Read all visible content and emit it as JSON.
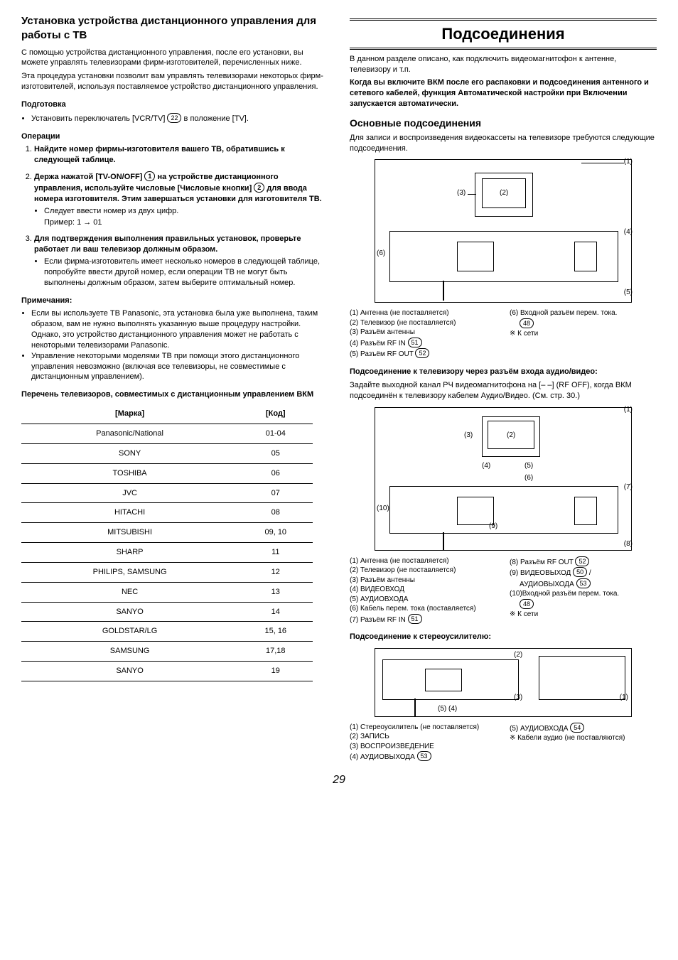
{
  "left": {
    "title": "Установка устройства дистанционного управления для работы с ТВ",
    "intro1": "С помощью устройства дистанционного управления, после его установки, вы можете управлять телевизорами фирм-изготовителей, перечисленных ниже.",
    "intro2": "Эта процедура установки позволит вам управлять телевизорами некоторых фирм-изготовителей, используя поставляемое устройство дистанционного управления.",
    "prep_h": "Подготовка",
    "prep_bullet": "Установить переключатель [VCR/TV]",
    "prep_ref": "22",
    "prep_end": " в положение [TV].",
    "ops_h": "Операции",
    "step1": "Найдите номер фирмы-изготовителя вашего ТВ, обратившись к следующей таблице.",
    "step2a": "Держа нажатой [TV-ON/OFF]",
    "step2ref1": "1",
    "step2b": " на устройстве дистанционного управления, используйте числовые [Числовые кнопки]",
    "step2ref2": "2",
    "step2c": " для ввода номера изготовителя. Этим завершаться установки для изготовителя ТВ.",
    "step2sub1": "Следует ввести номер из двух цифр.",
    "step2sub2": "Пример: 1 → 01",
    "step3": "Для подтверждения выполнения правильных установок, проверьте работает ли ваш телевизор должным образом.",
    "step3sub": "Если фирма-изготовитель имеет несколько номеров в следующей таблице, попробуйте ввести другой номер, если операции ТВ не могут быть выполнены должным образом, затем выберите оптимальный номер.",
    "notes_h": "Примечания:",
    "note1": "Если вы используете ТВ Panasonic, эта установка была уже выполнена, таким образом, вам не нужно выполнять указанную выше процедуру настройки. Однако, это устройство дистанционного управления может не работать с некоторыми телевизорами Panasonic.",
    "note2": "Управление некоторыми моделями ТВ при помощи этого дистанционного управления невозможно (включая все телевизоры, не совместимые с дистанционным управлением).",
    "table_h": "Перечень телевизоров, совместимых с дистанционным управлением ВКМ",
    "th_brand": "[Марка]",
    "th_code": "[Код]",
    "rows": [
      {
        "b": "Panasonic/National",
        "c": "01-04"
      },
      {
        "b": "SONY",
        "c": "05"
      },
      {
        "b": "TOSHIBA",
        "c": "06"
      },
      {
        "b": "JVC",
        "c": "07"
      },
      {
        "b": "HITACHI",
        "c": "08"
      },
      {
        "b": "MITSUBISHI",
        "c": "09, 10"
      },
      {
        "b": "SHARP",
        "c": "11"
      },
      {
        "b": "PHILIPS, SAMSUNG",
        "c": "12"
      },
      {
        "b": "NEC",
        "c": "13"
      },
      {
        "b": "SANYO",
        "c": "14"
      },
      {
        "b": "GOLDSTAR/LG",
        "c": "15, 16"
      },
      {
        "b": "SAMSUNG",
        "c": "17,18"
      },
      {
        "b": "SANYO",
        "c": "19"
      }
    ]
  },
  "right": {
    "title": "Подсоединения",
    "intro": "В данном разделе описано, как подключить видеомагнитофон к антенне, телевизору и т.п.",
    "bold_para": "Когда вы включите ВКМ после его распаковки и подсоединения антенного и сетевого кабелей, функция Автоматической настройки при Включении запускается автоматически.",
    "sec1_h": "Основные подсоединения",
    "sec1_p": "Для записи и воспроизведения видеокассеты на телевизоре требуются следующие подсоединения.",
    "d1_c1": "(1)",
    "d1_c2": "(2)",
    "d1_c3": "(3)",
    "d1_c4": "(4)",
    "d1_c5": "(5)",
    "d1_c6": "(6)",
    "leg1_l1": "(1) Антенна (не поставляется)",
    "leg1_l2": "(2) Телевизор (не поставляется)",
    "leg1_l3": "(3) Разъём антенны",
    "leg1_l4": "(4) Разъём RF IN",
    "leg1_l4r": "51",
    "leg1_l5": "(5) Разъём RF OUT",
    "leg1_l5r": "52",
    "leg1_r1": "(6) Входной разъём перем. тока.",
    "leg1_r1r": "48",
    "leg1_r2": "※ К сети",
    "sec2_h": "Подсоединение к телевизору через разъём входа аудио/видео:",
    "sec2_p": "Задайте выходной канал РЧ видеомагнитофона на [– –] (RF OFF), когда ВКМ подсоединён к телевизору кабелем Аудио/Видео. (См. стр. 30.)",
    "leg2_l1": "(1) Антенна (не поставляется)",
    "leg2_l2": "(2) Телевизор (не поставляется)",
    "leg2_l3": "(3) Разъём антенны",
    "leg2_l4": "(4) ВИДЕОВХОД",
    "leg2_l5": "(5) АУДИОВХОДА",
    "leg2_l6": "(6) Кабель перем. тока (поставляется)",
    "leg2_l7": "(7) Разъём RF IN",
    "leg2_l7r": "51",
    "leg2_r1": "(8) Разъём RF OUT",
    "leg2_r1r": "52",
    "leg2_r2": "(9) ВИДЕОВЫХОД",
    "leg2_r2r": "50",
    "leg2_r2b": "АУДИОВЫХОДА",
    "leg2_r2br": "53",
    "leg2_r3": "(10)Входной разъём перем. тока.",
    "leg2_r3r": "48",
    "leg2_r4": "※ К сети",
    "sec3_h": "Подсоединение к стереоусилителю:",
    "leg3_l1": "(1) Стереоусилитель (не поставляется)",
    "leg3_l2": "(2) ЗАПИСЬ",
    "leg3_l3": "(3) ВОСПРОИЗВЕДЕНИЕ",
    "leg3_l4": "(4) АУДИОВЫХОДА",
    "leg3_l4r": "53",
    "leg3_r1": "(5) АУДИОВХОДА",
    "leg3_r1r": "54",
    "leg3_r2": "※ Кабели аудио (не поставляются)"
  },
  "pagenum": "29"
}
